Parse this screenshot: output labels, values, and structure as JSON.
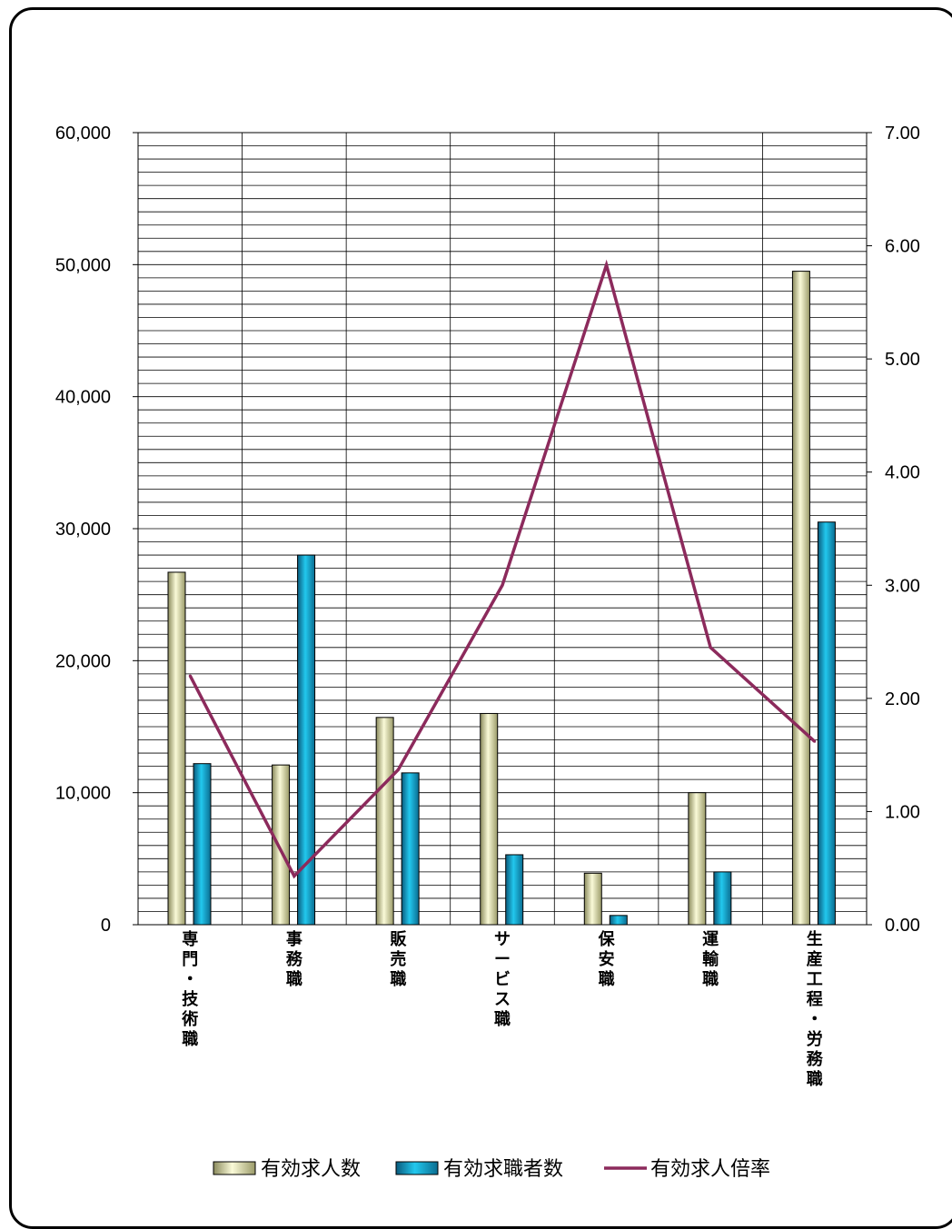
{
  "chart_data": {
    "type": "bar",
    "categories": [
      "専門・技術職",
      "事務職",
      "販売職",
      "サービス職",
      "保安職",
      "運輸職",
      "生産工程・労務職"
    ],
    "series": [
      {
        "name": "有効求人数",
        "type": "bar",
        "axis": "left",
        "values": [
          26700,
          12100,
          15700,
          16000,
          3900,
          10000,
          49500
        ]
      },
      {
        "name": "有効求職者数",
        "type": "bar",
        "axis": "left",
        "values": [
          12200,
          28000,
          11500,
          5300,
          700,
          4000,
          30500
        ]
      },
      {
        "name": "有効求人倍率",
        "type": "line",
        "axis": "right",
        "values": [
          2.2,
          0.43,
          1.37,
          3.0,
          5.83,
          2.45,
          1.62
        ]
      }
    ],
    "y_left": {
      "range": [
        0,
        60000
      ],
      "ticks": [
        "0",
        "10,000",
        "20,000",
        "30,000",
        "40,000",
        "50,000",
        "60,000"
      ]
    },
    "y_right": {
      "range": [
        0,
        7
      ],
      "ticks": [
        "0.00",
        "1.00",
        "2.00",
        "3.00",
        "4.00",
        "5.00",
        "6.00",
        "7.00"
      ]
    },
    "grid": true,
    "legend_position": "bottom",
    "colors": {
      "bar1": "#f0f0c0",
      "bar2": "#14b4dc",
      "line": "#8c2a5c"
    }
  }
}
